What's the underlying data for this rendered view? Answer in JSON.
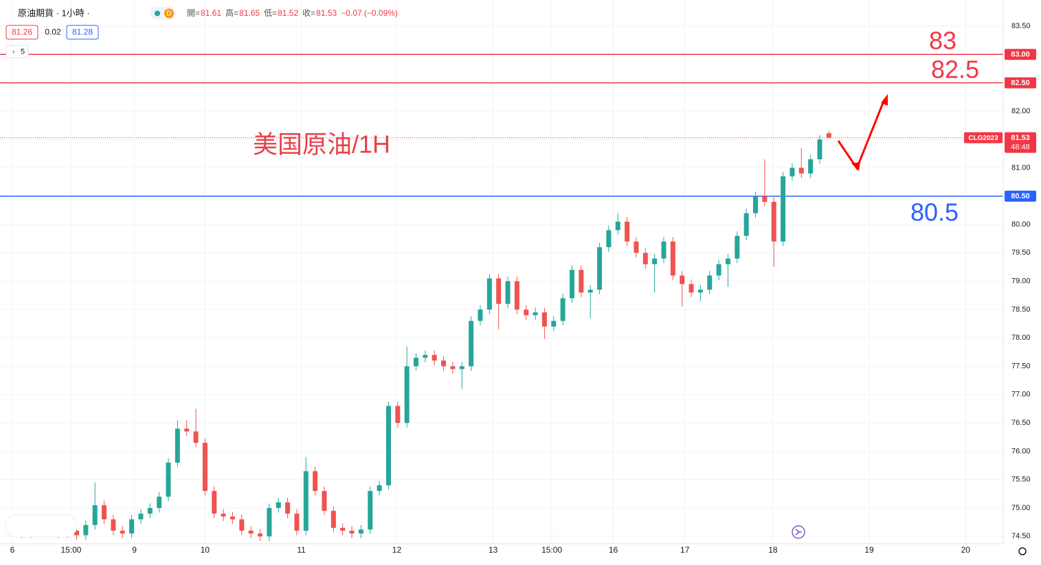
{
  "header": {
    "symbol": "原油期貨 · 1小時 ·",
    "badge": "D",
    "ohlc": [
      {
        "label": "開=",
        "value": "81.61"
      },
      {
        "label": "高=",
        "value": "81.65"
      },
      {
        "label": "低=",
        "value": "81.52"
      },
      {
        "label": "收=",
        "value": "81.53"
      }
    ],
    "change": "−0.07 (−0.09%)",
    "bid": "81.26",
    "spread": "0.02",
    "ask": "81.28",
    "indicators": "5"
  },
  "chart_data": {
    "type": "candlestick",
    "title": "美国原油/1H",
    "up_color": "#26a69a",
    "down_color": "#ef5350",
    "xlim": [
      -1.35,
      108
    ],
    "xticks": [
      {
        "value": 0,
        "label": "6"
      },
      {
        "value": 6.4,
        "label": "15:00"
      },
      {
        "value": 13.3,
        "label": "9"
      },
      {
        "value": 21,
        "label": "10"
      },
      {
        "value": 31.5,
        "label": "11"
      },
      {
        "value": 41.9,
        "label": "12"
      },
      {
        "value": 52.4,
        "label": "13"
      },
      {
        "value": 58.8,
        "label": "15:00"
      },
      {
        "value": 65.5,
        "label": "16"
      },
      {
        "value": 73.3,
        "label": "17"
      },
      {
        "value": 82.9,
        "label": "18"
      },
      {
        "value": 93.4,
        "label": "19"
      },
      {
        "value": 103.9,
        "label": "20"
      }
    ],
    "ylim": [
      74.37,
      83.96
    ],
    "yticks": [
      {
        "value": 74.5,
        "label": "74.50"
      },
      {
        "value": 75,
        "label": "75.00"
      },
      {
        "value": 75.5,
        "label": "75.50"
      },
      {
        "value": 76,
        "label": "76.00"
      },
      {
        "value": 76.5,
        "label": "76.50"
      },
      {
        "value": 77,
        "label": "77.00"
      },
      {
        "value": 77.5,
        "label": "77.50"
      },
      {
        "value": 78,
        "label": "78.00"
      },
      {
        "value": 78.5,
        "label": "78.50"
      },
      {
        "value": 79,
        "label": "79.00"
      },
      {
        "value": 79.5,
        "label": "79.50"
      },
      {
        "value": 80,
        "label": "80.00"
      },
      {
        "value": 80.5,
        "label": "80.50"
      },
      {
        "value": 81,
        "label": "81.00"
      },
      {
        "value": 81.5,
        "label": "81.50"
      },
      {
        "value": 82,
        "label": "82.00"
      },
      {
        "value": 82.5,
        "label": "82.50"
      },
      {
        "value": 83,
        "label": "83.00"
      },
      {
        "value": 83.5,
        "label": "83.50"
      }
    ],
    "grid": true,
    "levels": [
      {
        "value": 83,
        "label": "83.00",
        "annotation": "83",
        "color": "#f23645"
      },
      {
        "value": 82.5,
        "label": "82.50",
        "annotation": "82.5",
        "color": "#f23645"
      },
      {
        "value": 80.5,
        "label": "80.50",
        "annotation": "80.5",
        "color": "#2962ff"
      }
    ],
    "last_price": {
      "value": 81.53,
      "label": "81.53",
      "symbol": "CLG2023",
      "countdown": "48:48",
      "color": "#f23645"
    },
    "candles": [
      [
        74.62,
        74.7,
        74.52,
        74.6
      ],
      [
        74.6,
        74.68,
        74.47,
        74.55
      ],
      [
        74.55,
        74.7,
        74.47,
        74.62
      ],
      [
        74.62,
        74.7,
        74.5,
        74.58
      ],
      [
        74.58,
        74.73,
        74.5,
        74.65
      ],
      [
        74.65,
        74.73,
        74.47,
        74.55
      ],
      [
        74.55,
        74.68,
        74.47,
        74.6
      ],
      [
        74.6,
        74.68,
        74.44,
        74.52
      ],
      [
        74.52,
        74.78,
        74.44,
        74.7
      ],
      [
        74.7,
        75.45,
        74.62,
        75.05
      ],
      [
        75.05,
        75.13,
        74.72,
        74.8
      ],
      [
        74.8,
        74.88,
        74.52,
        74.6
      ],
      [
        74.6,
        74.68,
        74.47,
        74.55
      ],
      [
        74.55,
        74.88,
        74.47,
        74.8
      ],
      [
        74.8,
        74.98,
        74.72,
        74.9
      ],
      [
        74.9,
        75.08,
        74.82,
        75.0
      ],
      [
        75.0,
        75.28,
        74.92,
        75.2
      ],
      [
        75.2,
        75.88,
        75.12,
        75.8
      ],
      [
        75.8,
        76.55,
        75.72,
        76.4
      ],
      [
        76.4,
        76.55,
        76.27,
        76.35
      ],
      [
        76.35,
        76.75,
        76.07,
        76.15
      ],
      [
        76.15,
        76.23,
        75.22,
        75.3
      ],
      [
        75.3,
        75.38,
        74.82,
        74.9
      ],
      [
        74.9,
        74.98,
        74.77,
        74.85
      ],
      [
        74.85,
        74.93,
        74.72,
        74.8
      ],
      [
        74.8,
        74.88,
        74.52,
        74.6
      ],
      [
        74.6,
        74.68,
        74.47,
        74.55
      ],
      [
        74.55,
        74.63,
        74.42,
        74.5
      ],
      [
        74.5,
        75.08,
        74.42,
        75.0
      ],
      [
        75.0,
        75.18,
        74.92,
        75.1
      ],
      [
        75.1,
        75.18,
        74.82,
        74.9
      ],
      [
        74.9,
        74.98,
        74.52,
        74.6
      ],
      [
        74.6,
        75.9,
        74.52,
        75.65
      ],
      [
        75.65,
        75.73,
        75.22,
        75.3
      ],
      [
        75.3,
        75.38,
        74.87,
        74.95
      ],
      [
        74.95,
        75.03,
        74.57,
        74.65
      ],
      [
        74.65,
        74.73,
        74.52,
        74.6
      ],
      [
        74.6,
        74.68,
        74.47,
        74.55
      ],
      [
        74.55,
        74.7,
        74.47,
        74.62
      ],
      [
        74.62,
        75.38,
        74.54,
        75.3
      ],
      [
        75.3,
        75.48,
        75.22,
        75.4
      ],
      [
        75.4,
        76.88,
        75.32,
        76.8
      ],
      [
        76.8,
        76.88,
        76.42,
        76.5
      ],
      [
        76.5,
        77.85,
        76.42,
        77.5
      ],
      [
        77.5,
        77.73,
        77.42,
        77.65
      ],
      [
        77.65,
        77.78,
        77.57,
        77.7
      ],
      [
        77.7,
        77.78,
        77.52,
        77.6
      ],
      [
        77.6,
        77.68,
        77.42,
        77.5
      ],
      [
        77.5,
        77.58,
        77.37,
        77.45
      ],
      [
        77.45,
        77.58,
        77.1,
        77.5
      ],
      [
        77.5,
        78.38,
        77.42,
        78.3
      ],
      [
        78.3,
        78.58,
        78.22,
        78.5
      ],
      [
        78.5,
        79.12,
        78.42,
        79.05
      ],
      [
        79.05,
        79.13,
        78.15,
        78.6
      ],
      [
        78.6,
        79.08,
        78.52,
        79.0
      ],
      [
        79.0,
        79.08,
        78.42,
        78.5
      ],
      [
        78.5,
        78.58,
        78.32,
        78.4
      ],
      [
        78.4,
        78.53,
        78.32,
        78.45
      ],
      [
        78.45,
        78.53,
        77.98,
        78.2
      ],
      [
        78.2,
        78.38,
        78.12,
        78.3
      ],
      [
        78.3,
        78.78,
        78.22,
        78.7
      ],
      [
        78.7,
        79.28,
        78.62,
        79.2
      ],
      [
        79.2,
        79.28,
        78.72,
        78.8
      ],
      [
        78.8,
        78.93,
        78.35,
        78.85
      ],
      [
        78.85,
        79.68,
        78.77,
        79.6
      ],
      [
        79.6,
        79.98,
        79.52,
        79.9
      ],
      [
        79.9,
        80.2,
        79.82,
        80.05
      ],
      [
        80.05,
        80.13,
        79.62,
        79.7
      ],
      [
        79.7,
        79.78,
        79.42,
        79.5
      ],
      [
        79.5,
        79.58,
        79.22,
        79.3
      ],
      [
        79.3,
        79.48,
        78.8,
        79.4
      ],
      [
        79.4,
        79.78,
        79.32,
        79.7
      ],
      [
        79.7,
        79.78,
        79.02,
        79.1
      ],
      [
        79.1,
        79.18,
        78.55,
        78.95
      ],
      [
        78.95,
        79.03,
        78.72,
        78.8
      ],
      [
        78.8,
        78.93,
        78.65,
        78.85
      ],
      [
        78.85,
        79.18,
        78.77,
        79.1
      ],
      [
        79.1,
        79.38,
        79.02,
        79.3
      ],
      [
        79.3,
        79.48,
        78.9,
        79.4
      ],
      [
        79.4,
        79.88,
        79.32,
        79.8
      ],
      [
        79.8,
        80.28,
        79.72,
        80.2
      ],
      [
        80.2,
        80.58,
        80.12,
        80.5
      ],
      [
        80.5,
        81.15,
        80.32,
        80.4
      ],
      [
        80.4,
        80.48,
        79.25,
        79.7
      ],
      [
        79.7,
        80.93,
        79.62,
        80.85
      ],
      [
        80.85,
        81.08,
        80.77,
        81.0
      ],
      [
        81.0,
        81.35,
        80.82,
        80.9
      ],
      [
        80.9,
        81.23,
        80.82,
        81.15
      ],
      [
        81.15,
        81.58,
        81.07,
        81.5
      ],
      [
        81.61,
        81.65,
        81.52,
        81.53
      ]
    ]
  }
}
